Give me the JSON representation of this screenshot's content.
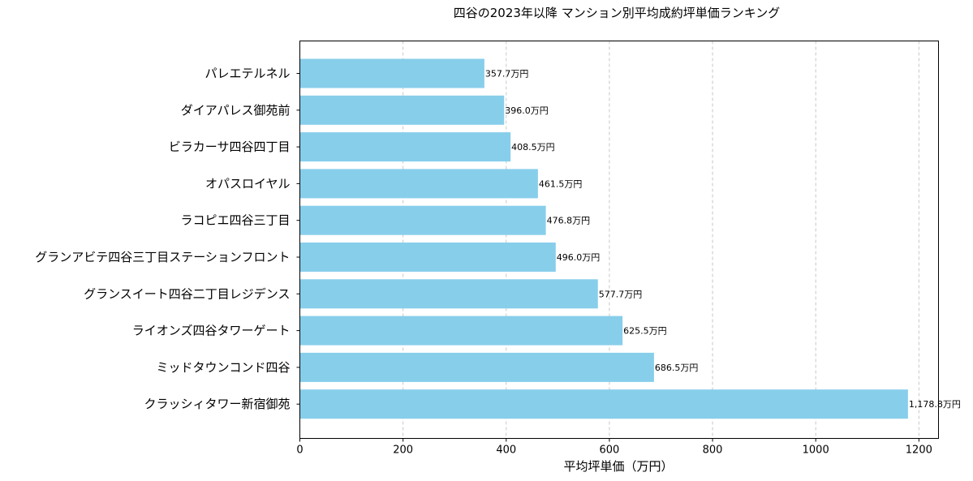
{
  "chart_data": {
    "type": "bar",
    "orientation": "horizontal",
    "title": "四谷の2023年以降 マンション別平均成約坪単価ランキング",
    "xlabel": "平均坪単価（万円）",
    "ylabel": "",
    "categories": [
      "パレエテルネル",
      "ダイアパレス御苑前",
      "ビラカーサ四谷四丁目",
      "オパスロイヤル",
      "ラコピエ四谷三丁目",
      "グランアビテ四谷三丁目ステーションフロント",
      "グランスイート四谷二丁目レジデンス",
      "ライオンズ四谷タワーゲート",
      "ミッドタウンコンド四谷",
      "クラッシィタワー新宿御苑"
    ],
    "values": [
      357.7,
      396.0,
      408.5,
      461.5,
      476.8,
      496.0,
      577.7,
      625.5,
      686.5,
      1178.8
    ],
    "data_labels": [
      "357.7万円",
      "396.0万円",
      "408.5万円",
      "461.5万円",
      "476.8万円",
      "496.0万円",
      "577.7万円",
      "625.5万円",
      "686.5万円",
      "1,178.8万円"
    ],
    "xticks": [
      0,
      200,
      400,
      600,
      800,
      1000,
      1200
    ],
    "xtick_labels": [
      "0",
      "200",
      "400",
      "600",
      "800",
      "1000",
      "1200"
    ],
    "xlim": [
      0,
      1238
    ],
    "grid": "x-dashed",
    "bar_color": "#87CEEB",
    "grid_color": "#c8c8c8"
  }
}
